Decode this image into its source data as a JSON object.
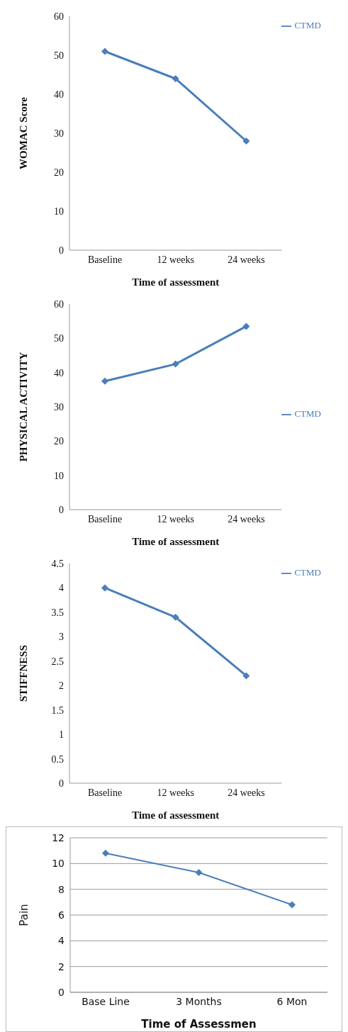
{
  "chart_data": [
    {
      "type": "line",
      "xlabel": "Time of assessment",
      "ylabel": "WOMAC Score",
      "categories": [
        "Baseline",
        "12 weeks",
        "24 weeks"
      ],
      "series": [
        {
          "name": "CTMD",
          "color": "#4a7ebb",
          "values": [
            51,
            44,
            28
          ]
        }
      ],
      "ylim": [
        0,
        60
      ],
      "yticks": [
        0,
        10,
        20,
        30,
        40,
        50,
        60
      ],
      "legend": "top right",
      "marker": "diamond"
    },
    {
      "type": "line",
      "xlabel": "Time of assessment",
      "ylabel": "PHYSICAL ACTIVITY",
      "categories": [
        "Baseline",
        "12 weeks",
        "24 weeks"
      ],
      "series": [
        {
          "name": "CTMD",
          "color": "#4a7ebb",
          "values": [
            37.5,
            42.5,
            53.5
          ]
        }
      ],
      "ylim": [
        0,
        60
      ],
      "yticks": [
        0,
        10,
        20,
        30,
        40,
        50,
        60
      ],
      "legend": "right",
      "marker": "diamond"
    },
    {
      "type": "line",
      "xlabel": "Time of assessment",
      "ylabel": "STIFFNESS",
      "categories": [
        "Baseline",
        "12 weeks",
        "24 weeks"
      ],
      "series": [
        {
          "name": "CTMD",
          "color": "#4a7ebb",
          "values": [
            4,
            3.4,
            2.2
          ]
        }
      ],
      "ylim": [
        0,
        4.5
      ],
      "yticks": [
        0,
        0.5,
        1,
        1.5,
        2,
        2.5,
        3,
        3.5,
        4,
        4.5
      ],
      "legend": "top right",
      "marker": "diamond"
    },
    {
      "type": "line",
      "xlabel": "Time of Assessmen",
      "ylabel": "Pain",
      "categories": [
        "Base Line",
        "3 Months",
        "6 Mon"
      ],
      "series": [
        {
          "color": "#4a7ebb",
          "values": [
            10.8,
            9.3,
            6.8
          ]
        }
      ],
      "ylim": [
        0,
        12
      ],
      "yticks": [
        0,
        2,
        4,
        6,
        8,
        10,
        12
      ],
      "grid": "y",
      "marker": "diamond"
    }
  ]
}
